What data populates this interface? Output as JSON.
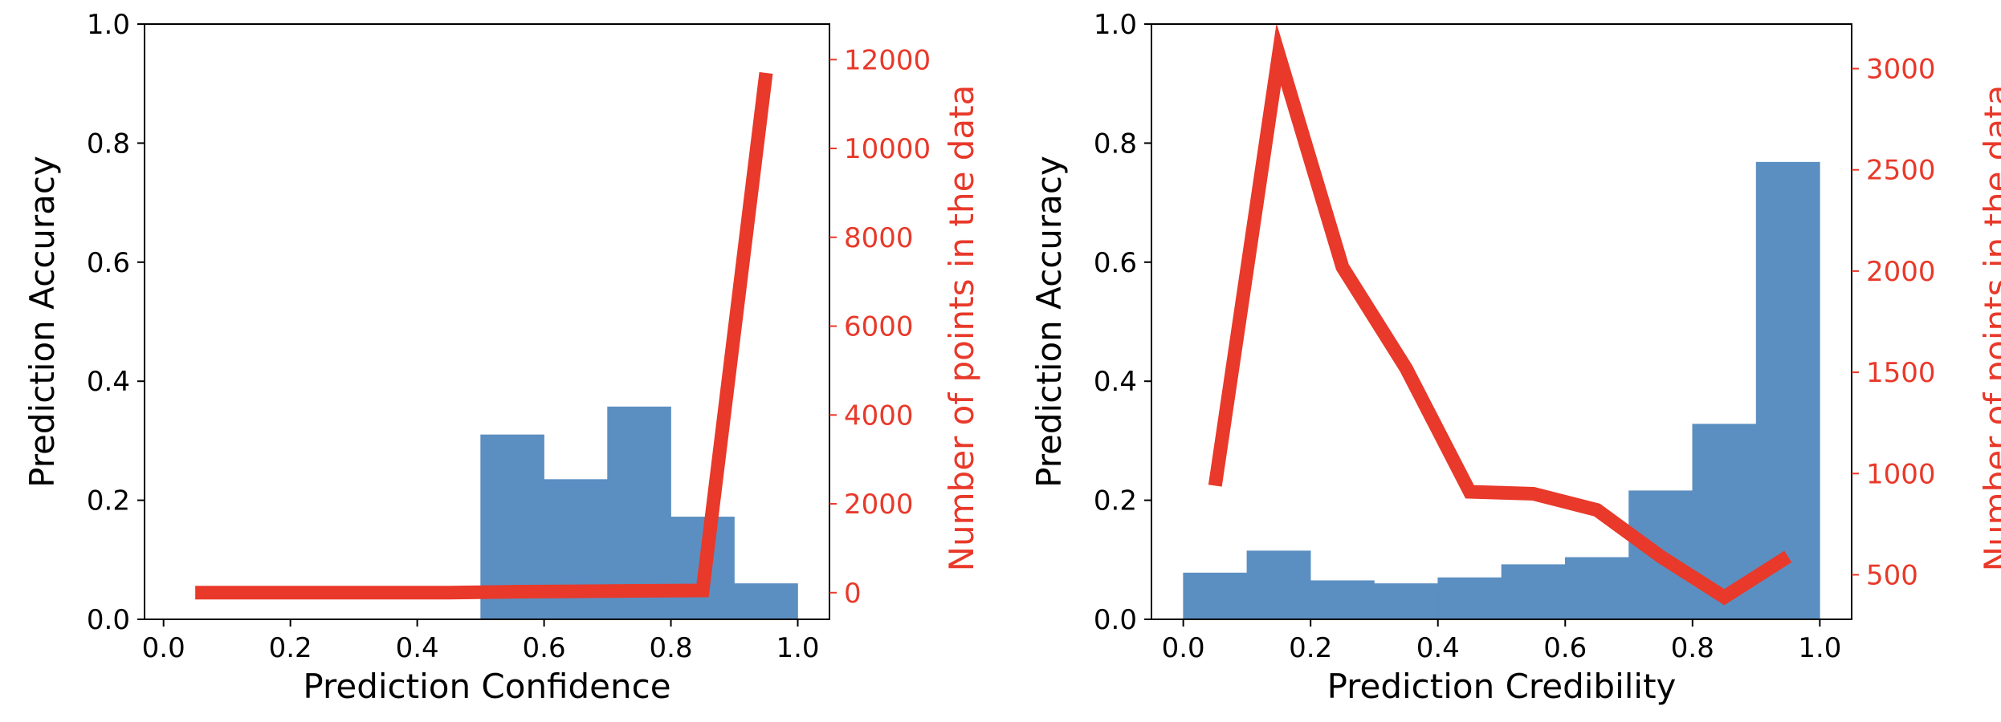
{
  "colors": {
    "bars": "#5b8fc1",
    "line": "#e8392a",
    "axis": "#000000",
    "right_axis_text": "#e8392a"
  },
  "chart_data": [
    {
      "type": "bar",
      "secondary_type": "line",
      "xlabel": "Prediction Confidence",
      "ylabel": "Prediction Accuracy",
      "ylabel_right": "Number of points in the data",
      "xlim": [
        -0.03,
        1.05
      ],
      "ylim": [
        0.0,
        1.0
      ],
      "ylim_right": [
        -600,
        12800
      ],
      "x_ticks": [
        0.0,
        0.2,
        0.4,
        0.6,
        0.8,
        1.0
      ],
      "x_tick_labels": [
        "0.0",
        "0.2",
        "0.4",
        "0.6",
        "0.8",
        "1.0"
      ],
      "y_ticks": [
        0.0,
        0.2,
        0.4,
        0.6,
        0.8,
        1.0
      ],
      "y_tick_labels": [
        "0.0",
        "0.2",
        "0.4",
        "0.6",
        "0.8",
        "1.0"
      ],
      "y_right_ticks": [
        0,
        2000,
        4000,
        6000,
        8000,
        10000,
        12000
      ],
      "y_right_tick_labels": [
        "0",
        "2000",
        "4000",
        "6000",
        "8000",
        "10000",
        "12000"
      ],
      "grid": false,
      "bars": [
        {
          "x0": 0.5,
          "x1": 0.6,
          "value": 0.31
        },
        {
          "x0": 0.6,
          "x1": 0.7,
          "value": 0.235
        },
        {
          "x0": 0.7,
          "x1": 0.8,
          "value": 0.357
        },
        {
          "x0": 0.8,
          "x1": 0.9,
          "value": 0.172
        },
        {
          "x0": 0.9,
          "x1": 1.0,
          "value": 0.06
        }
      ],
      "line": {
        "x": [
          0.05,
          0.15,
          0.25,
          0.35,
          0.45,
          0.55,
          0.65,
          0.75,
          0.85,
          0.95
        ],
        "y": [
          0,
          0,
          0,
          0,
          0,
          20,
          30,
          40,
          50,
          11700
        ]
      }
    },
    {
      "type": "bar",
      "secondary_type": "line",
      "xlabel": "Prediction Credibility",
      "ylabel": "Prediction Accuracy",
      "ylabel_right": "Number of points in the data",
      "xlim": [
        -0.05,
        1.05
      ],
      "ylim": [
        0.0,
        1.0
      ],
      "ylim_right": [
        280,
        3220
      ],
      "x_ticks": [
        0.0,
        0.2,
        0.4,
        0.6,
        0.8,
        1.0
      ],
      "x_tick_labels": [
        "0.0",
        "0.2",
        "0.4",
        "0.6",
        "0.8",
        "1.0"
      ],
      "y_ticks": [
        0.0,
        0.2,
        0.4,
        0.6,
        0.8,
        1.0
      ],
      "y_tick_labels": [
        "0.0",
        "0.2",
        "0.4",
        "0.6",
        "0.8",
        "1.0"
      ],
      "y_right_ticks": [
        500,
        1000,
        1500,
        2000,
        2500,
        3000
      ],
      "y_right_tick_labels": [
        "500",
        "1000",
        "1500",
        "2000",
        "2500",
        "3000"
      ],
      "grid": false,
      "bars": [
        {
          "x0": 0.0,
          "x1": 0.1,
          "value": 0.078
        },
        {
          "x0": 0.1,
          "x1": 0.2,
          "value": 0.115
        },
        {
          "x0": 0.2,
          "x1": 0.3,
          "value": 0.065
        },
        {
          "x0": 0.3,
          "x1": 0.4,
          "value": 0.06
        },
        {
          "x0": 0.4,
          "x1": 0.5,
          "value": 0.07
        },
        {
          "x0": 0.5,
          "x1": 0.6,
          "value": 0.092
        },
        {
          "x0": 0.6,
          "x1": 0.7,
          "value": 0.104
        },
        {
          "x0": 0.7,
          "x1": 0.8,
          "value": 0.216
        },
        {
          "x0": 0.8,
          "x1": 0.9,
          "value": 0.328
        },
        {
          "x0": 0.9,
          "x1": 1.0,
          "value": 0.768
        }
      ],
      "line": {
        "x": [
          0.05,
          0.15,
          0.25,
          0.35,
          0.45,
          0.55,
          0.65,
          0.75,
          0.85,
          0.95
        ],
        "y": [
          940,
          3070,
          2020,
          1520,
          910,
          900,
          820,
          590,
          390,
          590
        ]
      }
    }
  ]
}
